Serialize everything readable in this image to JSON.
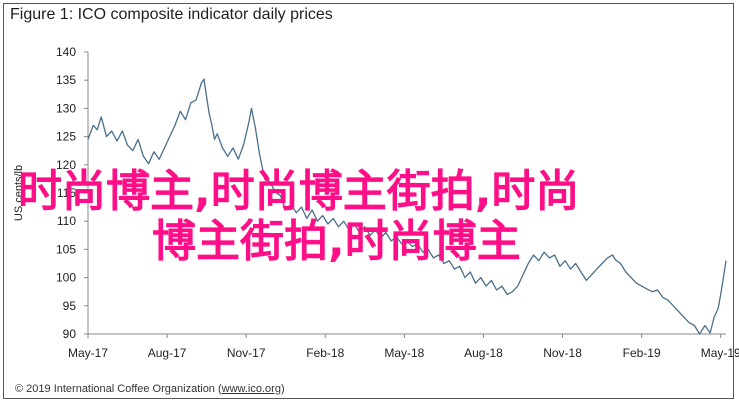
{
  "title": "Figure 1: ICO composite indicator daily prices",
  "footer": {
    "text": "© 2019 International Coffee Organization (",
    "link": "www.ico.org",
    "close": ")"
  },
  "watermark": {
    "line1": "时尚博主,时尚博主街拍,时尚",
    "line2": "博主街拍,时尚博主"
  },
  "colors": {
    "line": "#4a6f8a",
    "axis": "#888888",
    "watermark": "#ff0f87"
  },
  "chart_data": {
    "type": "line",
    "title": "Figure 1: ICO composite indicator daily prices",
    "xlabel": "",
    "ylabel": "US cents/lb",
    "ylim": [
      90,
      140
    ],
    "yticks": [
      90,
      95,
      100,
      105,
      110,
      115,
      120,
      125,
      130,
      135,
      140
    ],
    "xticks": [
      "May-17",
      "Aug-17",
      "Nov-17",
      "Feb-18",
      "May-18",
      "Aug-18",
      "Nov-18",
      "Feb-19",
      "May-19"
    ],
    "xlim": [
      0,
      24.2
    ],
    "grid": false,
    "series": [
      {
        "points": [
          [
            0.0,
            124.5
          ],
          [
            0.2,
            127.0
          ],
          [
            0.35,
            126.2
          ],
          [
            0.5,
            128.5
          ],
          [
            0.7,
            125.0
          ],
          [
            0.9,
            126.0
          ],
          [
            1.1,
            124.2
          ],
          [
            1.3,
            126.0
          ],
          [
            1.5,
            123.5
          ],
          [
            1.7,
            122.5
          ],
          [
            1.9,
            124.5
          ],
          [
            2.1,
            121.5
          ],
          [
            2.3,
            120.2
          ],
          [
            2.5,
            122.3
          ],
          [
            2.7,
            121.0
          ],
          [
            2.9,
            123.0
          ],
          [
            3.1,
            125.0
          ],
          [
            3.3,
            127.0
          ],
          [
            3.5,
            129.5
          ],
          [
            3.7,
            128.0
          ],
          [
            3.9,
            131.0
          ],
          [
            4.1,
            131.5
          ],
          [
            4.3,
            134.5
          ],
          [
            4.4,
            135.2
          ],
          [
            4.5,
            132.0
          ],
          [
            4.6,
            129.0
          ],
          [
            4.7,
            127.0
          ],
          [
            4.8,
            124.5
          ],
          [
            4.9,
            125.5
          ],
          [
            5.1,
            123.0
          ],
          [
            5.3,
            121.5
          ],
          [
            5.5,
            123.0
          ],
          [
            5.7,
            121.0
          ],
          [
            5.9,
            123.5
          ],
          [
            6.1,
            127.5
          ],
          [
            6.2,
            130.0
          ],
          [
            6.35,
            126.5
          ],
          [
            6.5,
            122.0
          ],
          [
            6.7,
            117.5
          ],
          [
            6.9,
            117.0
          ],
          [
            7.1,
            115.2
          ],
          [
            7.3,
            114.5
          ],
          [
            7.5,
            112.0
          ],
          [
            7.7,
            113.0
          ],
          [
            7.9,
            111.5
          ],
          [
            8.1,
            112.5
          ],
          [
            8.3,
            110.5
          ],
          [
            8.5,
            112.0
          ],
          [
            8.7,
            110.0
          ],
          [
            8.9,
            111.0
          ],
          [
            9.1,
            109.5
          ],
          [
            9.3,
            110.5
          ],
          [
            9.5,
            109.0
          ],
          [
            9.7,
            110.0
          ],
          [
            9.9,
            108.5
          ],
          [
            10.1,
            109.5
          ],
          [
            10.3,
            108.0
          ],
          [
            10.5,
            109.0
          ],
          [
            10.7,
            107.5
          ],
          [
            10.9,
            108.5
          ],
          [
            11.1,
            107.0
          ],
          [
            11.3,
            108.0
          ],
          [
            11.5,
            106.5
          ],
          [
            11.7,
            107.2
          ],
          [
            11.9,
            106.0
          ],
          [
            12.1,
            106.5
          ],
          [
            12.3,
            105.5
          ],
          [
            12.5,
            106.0
          ],
          [
            12.7,
            104.5
          ],
          [
            12.9,
            105.0
          ],
          [
            13.1,
            103.5
          ],
          [
            13.3,
            104.0
          ],
          [
            13.5,
            102.5
          ],
          [
            13.7,
            103.0
          ],
          [
            13.9,
            101.5
          ],
          [
            14.1,
            102.0
          ],
          [
            14.3,
            100.0
          ],
          [
            14.5,
            101.0
          ],
          [
            14.7,
            99.0
          ],
          [
            14.9,
            100.0
          ],
          [
            15.1,
            98.5
          ],
          [
            15.3,
            99.5
          ],
          [
            15.5,
            97.8
          ],
          [
            15.7,
            98.5
          ],
          [
            15.9,
            97.0
          ],
          [
            16.1,
            97.5
          ],
          [
            16.3,
            98.5
          ],
          [
            16.5,
            100.5
          ],
          [
            16.7,
            102.5
          ],
          [
            16.9,
            104.0
          ],
          [
            17.1,
            103.0
          ],
          [
            17.3,
            104.5
          ],
          [
            17.5,
            103.5
          ],
          [
            17.7,
            104.0
          ],
          [
            17.9,
            102.0
          ],
          [
            18.1,
            103.0
          ],
          [
            18.3,
            101.5
          ],
          [
            18.5,
            102.5
          ],
          [
            18.7,
            101.0
          ],
          [
            18.9,
            99.5
          ],
          [
            19.1,
            100.5
          ],
          [
            19.3,
            101.5
          ],
          [
            19.5,
            102.5
          ],
          [
            19.7,
            103.5
          ],
          [
            19.9,
            104.0
          ],
          [
            20.0,
            103.2
          ],
          [
            20.2,
            102.5
          ],
          [
            20.4,
            101.0
          ],
          [
            20.6,
            100.0
          ],
          [
            20.8,
            99.0
          ],
          [
            21.0,
            98.5
          ],
          [
            21.2,
            98.0
          ],
          [
            21.4,
            97.5
          ],
          [
            21.6,
            97.8
          ],
          [
            21.8,
            96.5
          ],
          [
            22.0,
            96.0
          ],
          [
            22.2,
            95.0
          ],
          [
            22.4,
            94.0
          ],
          [
            22.6,
            93.0
          ],
          [
            22.8,
            92.0
          ],
          [
            23.0,
            91.5
          ],
          [
            23.2,
            90.0
          ],
          [
            23.4,
            91.5
          ],
          [
            23.6,
            90.2
          ],
          [
            23.75,
            93.0
          ],
          [
            23.9,
            94.5
          ],
          [
            24.0,
            97.0
          ],
          [
            24.1,
            100.0
          ],
          [
            24.2,
            103.0
          ]
        ]
      }
    ]
  }
}
